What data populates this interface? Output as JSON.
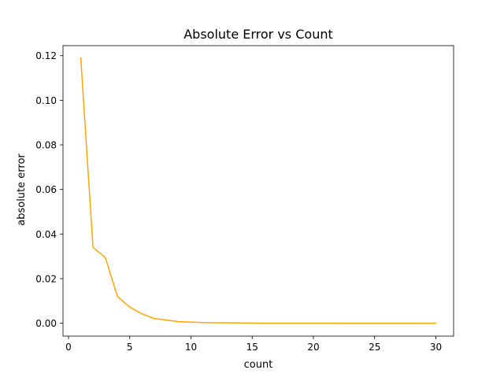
{
  "chart_data": {
    "type": "line",
    "title": "Absolute Error vs Count",
    "xlabel": "count",
    "ylabel": "absolute error",
    "xlim": [
      -0.45,
      31.45
    ],
    "ylim": [
      -0.0058,
      0.1245
    ],
    "xticks": [
      0,
      5,
      10,
      15,
      20,
      25,
      30
    ],
    "yticks": [
      0.0,
      0.02,
      0.04,
      0.06,
      0.08,
      0.1,
      0.12
    ],
    "xtick_labels": [
      "0",
      "5",
      "10",
      "15",
      "20",
      "25",
      "30"
    ],
    "ytick_labels": [
      "0.00",
      "0.02",
      "0.04",
      "0.06",
      "0.08",
      "0.10",
      "0.12"
    ],
    "grid": false,
    "series": [
      {
        "color": "#ffa500",
        "x": [
          1,
          2,
          3,
          4,
          5,
          6,
          7,
          8,
          9,
          10,
          11,
          12,
          13,
          14,
          15,
          16,
          17,
          18,
          19,
          20,
          21,
          22,
          23,
          24,
          25,
          26,
          27,
          28,
          29,
          30
        ],
        "y": [
          0.119,
          0.034,
          0.0295,
          0.012,
          0.0072,
          0.0042,
          0.0021,
          0.0014,
          0.0007,
          0.0005,
          0.0003,
          0.0002,
          0.00015,
          0.0001,
          6e-05,
          4e-05,
          3e-05,
          2e-05,
          1.5e-05,
          1e-05,
          1e-05,
          0.0,
          0.0,
          0.0,
          0.0,
          0.0,
          0.0,
          0.0,
          0.0,
          0.0
        ]
      }
    ]
  }
}
